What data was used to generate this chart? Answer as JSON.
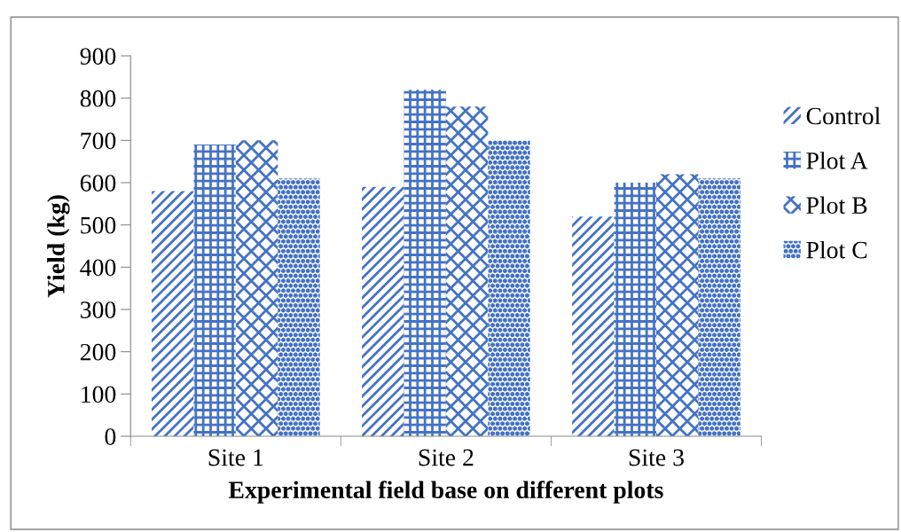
{
  "chart_data": {
    "type": "bar",
    "xlabel": "Experimental field base on different plots",
    "ylabel": "Yield (kg)",
    "categories": [
      "Site 1",
      "Site 2",
      "Site 3"
    ],
    "series": [
      {
        "name": "Control",
        "color": "#4472c4",
        "values": [
          580,
          590,
          520
        ]
      },
      {
        "name": "Plot A",
        "color": "#4472c4",
        "values": [
          690,
          820,
          600
        ]
      },
      {
        "name": "Plot B",
        "color": "#4472c4",
        "values": [
          700,
          780,
          620
        ]
      },
      {
        "name": "Plot C",
        "color": "#4472c4",
        "values": [
          610,
          700,
          610
        ]
      }
    ],
    "ylim": [
      0,
      900
    ],
    "yticks": [
      0,
      100,
      200,
      300,
      400,
      500,
      600,
      700,
      800,
      900
    ],
    "grid": false,
    "legend": "right"
  }
}
